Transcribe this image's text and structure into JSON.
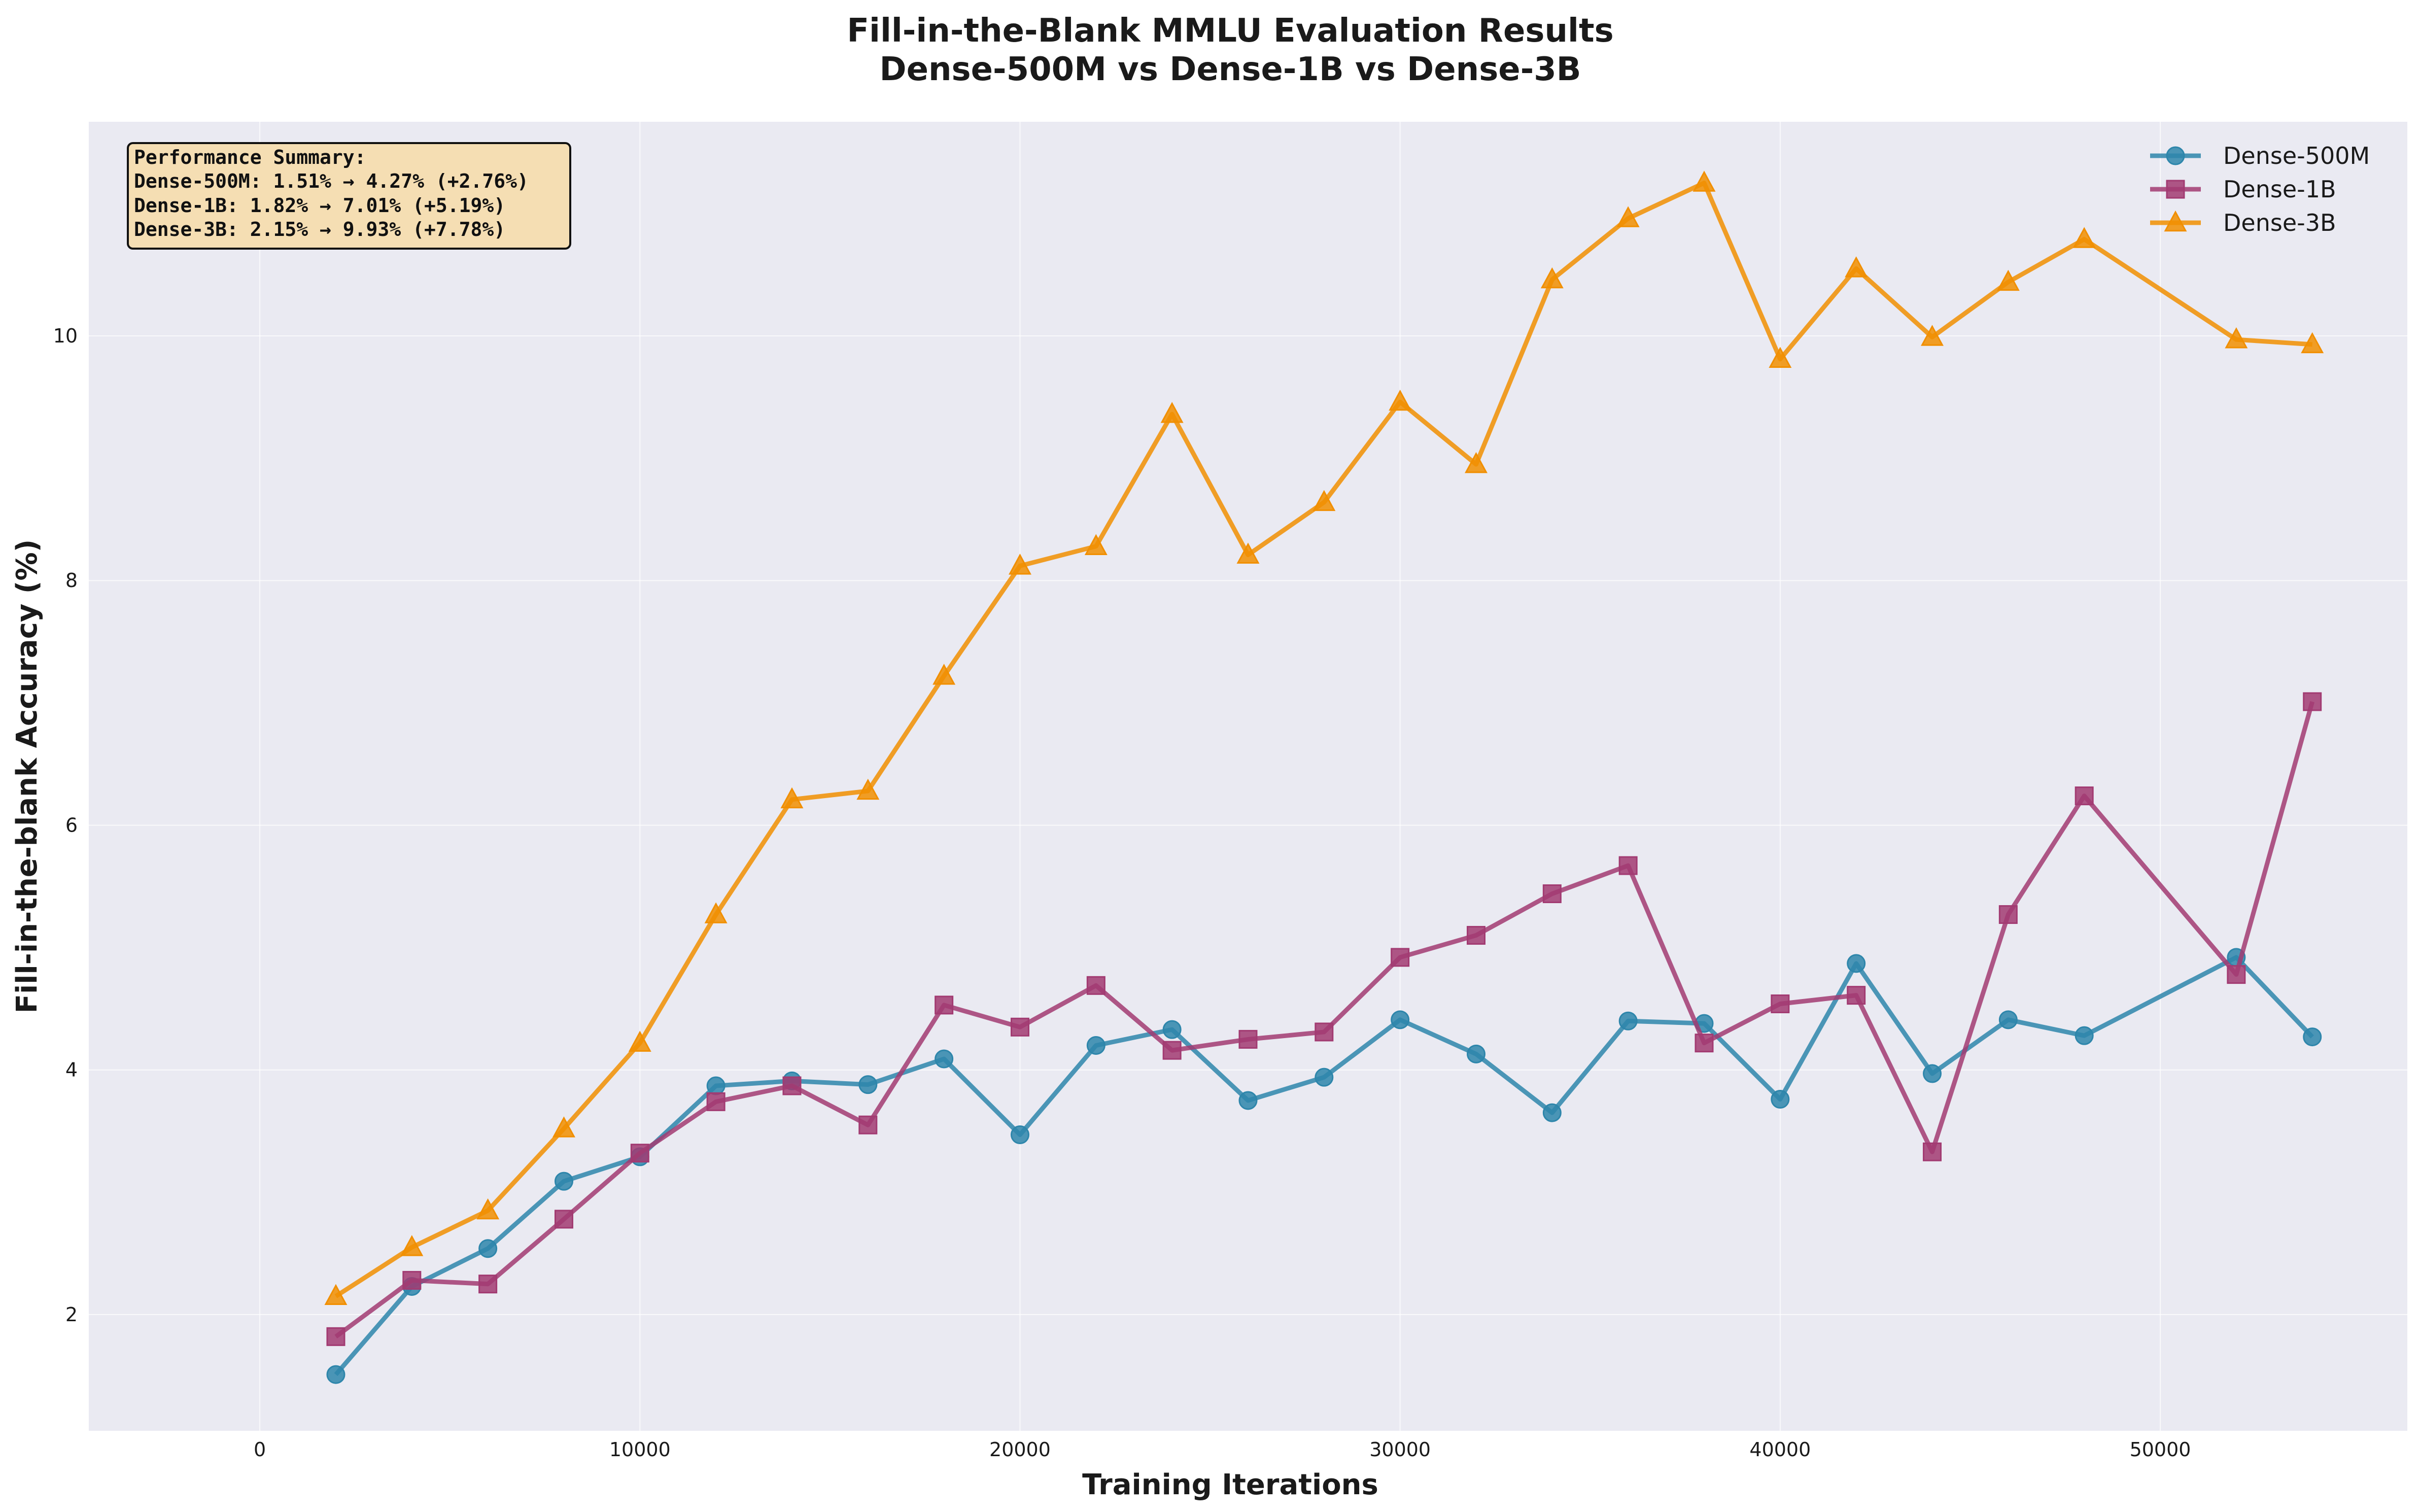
{
  "chart_data": {
    "type": "line",
    "title": "Fill-in-the-Blank MMLU Evaluation Results",
    "subtitle": "Dense-500M vs Dense-1B vs Dense-3B",
    "xlabel": "Training Iterations",
    "ylabel": "Fill-in-the-blank Accuracy (%)",
    "xlim": [
      -4500,
      56500
    ],
    "ylim": [
      1.05,
      11.75
    ],
    "xticks": [
      0,
      10000,
      20000,
      30000,
      40000,
      50000
    ],
    "yticks": [
      2,
      4,
      6,
      8,
      10
    ],
    "grid": true,
    "legend_position": "top-right",
    "x": [
      2000,
      4000,
      6000,
      8000,
      10000,
      12000,
      14000,
      16000,
      18000,
      20000,
      22000,
      24000,
      26000,
      28000,
      30000,
      32000,
      34000,
      36000,
      38000,
      40000,
      42000,
      44000,
      46000,
      48000,
      52000,
      54000
    ],
    "series": [
      {
        "name": "Dense-500M",
        "color": "#2E86AB",
        "marker": "circle",
        "values": [
          1.51,
          2.23,
          2.54,
          3.09,
          3.29,
          3.87,
          3.91,
          3.88,
          4.09,
          3.47,
          4.2,
          4.33,
          3.75,
          3.94,
          4.41,
          4.13,
          3.65,
          4.4,
          4.38,
          3.76,
          4.87,
          3.97,
          4.41,
          4.28,
          4.92,
          4.27
        ]
      },
      {
        "name": "Dense-1B",
        "color": "#A23B72",
        "marker": "square",
        "values": [
          1.82,
          2.28,
          2.25,
          2.78,
          3.32,
          3.74,
          3.87,
          3.55,
          4.53,
          4.35,
          4.69,
          4.16,
          4.25,
          4.31,
          4.92,
          5.1,
          5.44,
          5.67,
          4.22,
          4.54,
          4.61,
          3.33,
          5.27,
          6.24,
          4.78,
          7.01
        ]
      },
      {
        "name": "Dense-3B",
        "color": "#F18F01",
        "marker": "triangle",
        "values": [
          2.15,
          2.55,
          2.85,
          3.52,
          4.22,
          5.27,
          6.21,
          6.28,
          7.22,
          8.12,
          8.28,
          9.36,
          8.21,
          8.64,
          9.46,
          8.95,
          10.46,
          10.96,
          11.25,
          9.81,
          10.55,
          9.99,
          10.44,
          10.79,
          9.97,
          9.93
        ]
      }
    ],
    "annotation": {
      "lines": [
        "Performance Summary:",
        "Dense-500M: 1.51% → 4.27% (+2.76%)",
        "Dense-1B: 1.82% → 7.01% (+5.19%)",
        "Dense-3B: 2.15% → 9.93% (+7.78%)"
      ]
    }
  }
}
